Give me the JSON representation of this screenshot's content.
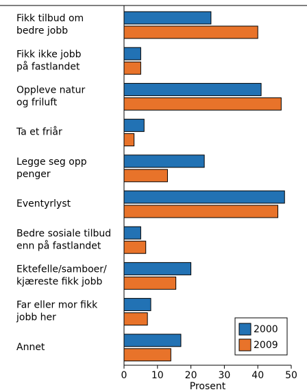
{
  "chart_data": {
    "type": "barh",
    "categories": [
      "Fikk tilbud om\nbedre jobb",
      "Fikk ikke jobb\npå fastlandet",
      "Oppleve natur\nog friluft",
      "Ta et friår",
      "Legge seg opp\npenger",
      "Eventyrlyst",
      "Bedre sosiale tilbud\nenn på fastlandet",
      "Ektefelle/samboer/\nkjæreste fikk jobb",
      "Far eller mor fikk\njobb her",
      "Annet"
    ],
    "series": [
      {
        "name": "2000",
        "color": "#2272b4",
        "values": [
          26,
          5,
          41,
          6,
          24,
          48,
          5,
          20,
          8,
          17
        ]
      },
      {
        "name": "2009",
        "color": "#e8732a",
        "values": [
          40,
          5,
          47,
          3,
          13,
          46,
          6.5,
          15.5,
          7,
          14
        ]
      }
    ],
    "xlim": [
      0,
      50
    ],
    "xticks": [
      0,
      10,
      20,
      30,
      40,
      50
    ],
    "xlabel": "Prosent",
    "legend": "lower right"
  }
}
